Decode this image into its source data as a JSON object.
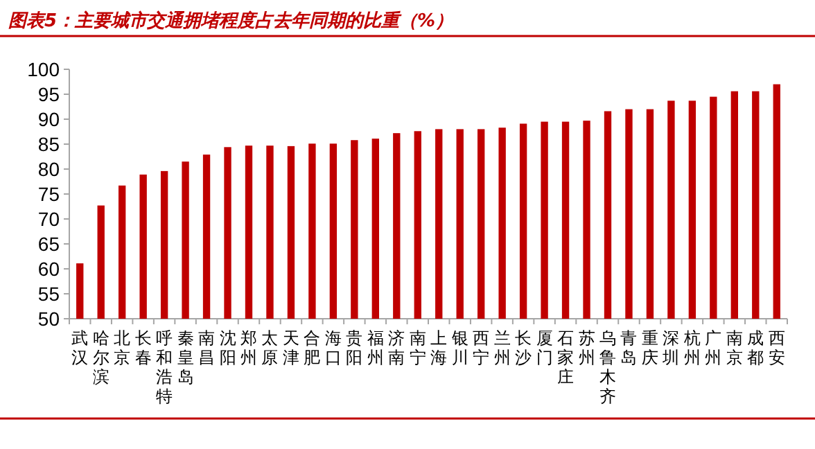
{
  "chart_data": {
    "type": "bar",
    "title": "图表5：主要城市交通拥堵程度占去年同期的比重（%）",
    "categories": [
      "武汉",
      "哈尔滨",
      "北京",
      "长春",
      "呼和浩特",
      "秦皇岛",
      "南昌",
      "沈阳",
      "郑州",
      "太原",
      "天津",
      "合肥",
      "海口",
      "贵阳",
      "福州",
      "济南",
      "南宁",
      "上海",
      "银川",
      "西宁",
      "兰州",
      "长沙",
      "厦门",
      "石家庄",
      "苏州",
      "乌鲁木齐",
      "青岛",
      "重庆",
      "深圳",
      "杭州",
      "广州",
      "南京",
      "成都",
      "西安"
    ],
    "values": [
      61.1,
      72.7,
      76.7,
      78.9,
      79.6,
      81.5,
      82.9,
      84.4,
      84.7,
      84.7,
      84.6,
      85.1,
      85.1,
      85.8,
      86.1,
      87.2,
      87.6,
      88.0,
      88.0,
      88.0,
      88.3,
      89.1,
      89.5,
      89.5,
      89.7,
      91.6,
      92.0,
      92.0,
      93.7,
      93.7,
      94.5,
      95.6,
      95.6,
      97.0
    ],
    "color": "#c00000",
    "ylim": [
      50,
      100
    ],
    "yticks": [
      50,
      55,
      60,
      65,
      70,
      75,
      80,
      85,
      90,
      95,
      100
    ],
    "grid": false
  }
}
